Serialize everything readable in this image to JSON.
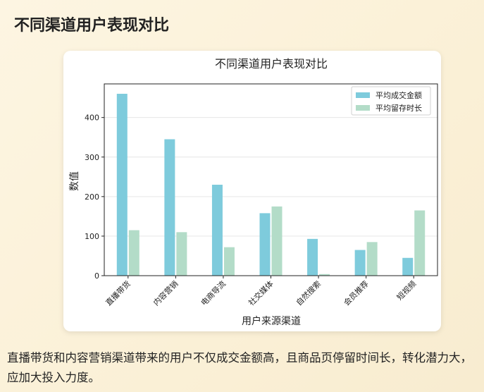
{
  "header": {
    "title": "不同渠道用户表现对比"
  },
  "chart_data": {
    "type": "bar",
    "title": "不同渠道用户表现对比",
    "xlabel": "用户来源渠道",
    "ylabel": "数值",
    "categories": [
      "直播带货",
      "内容营销",
      "电商导流",
      "社交媒体",
      "自然搜索",
      "会员推荐",
      "短视频"
    ],
    "series": [
      {
        "name": "平均成交金额",
        "color": "#7ecbdc",
        "values": [
          460,
          345,
          230,
          158,
          93,
          65,
          45
        ]
      },
      {
        "name": "平均留存时长",
        "color": "#b3dcc8",
        "values": [
          115,
          110,
          72,
          175,
          4,
          85,
          165
        ]
      }
    ],
    "ylim": [
      0,
      485
    ],
    "yticks": [
      0,
      100,
      200,
      300,
      400
    ],
    "grid": true,
    "legend": "top-right"
  },
  "caption": "直播带货和内容营销渠道带来的用户不仅成交金额高，且商品页停留时间长，转化潜力大，应加大投入力度。"
}
